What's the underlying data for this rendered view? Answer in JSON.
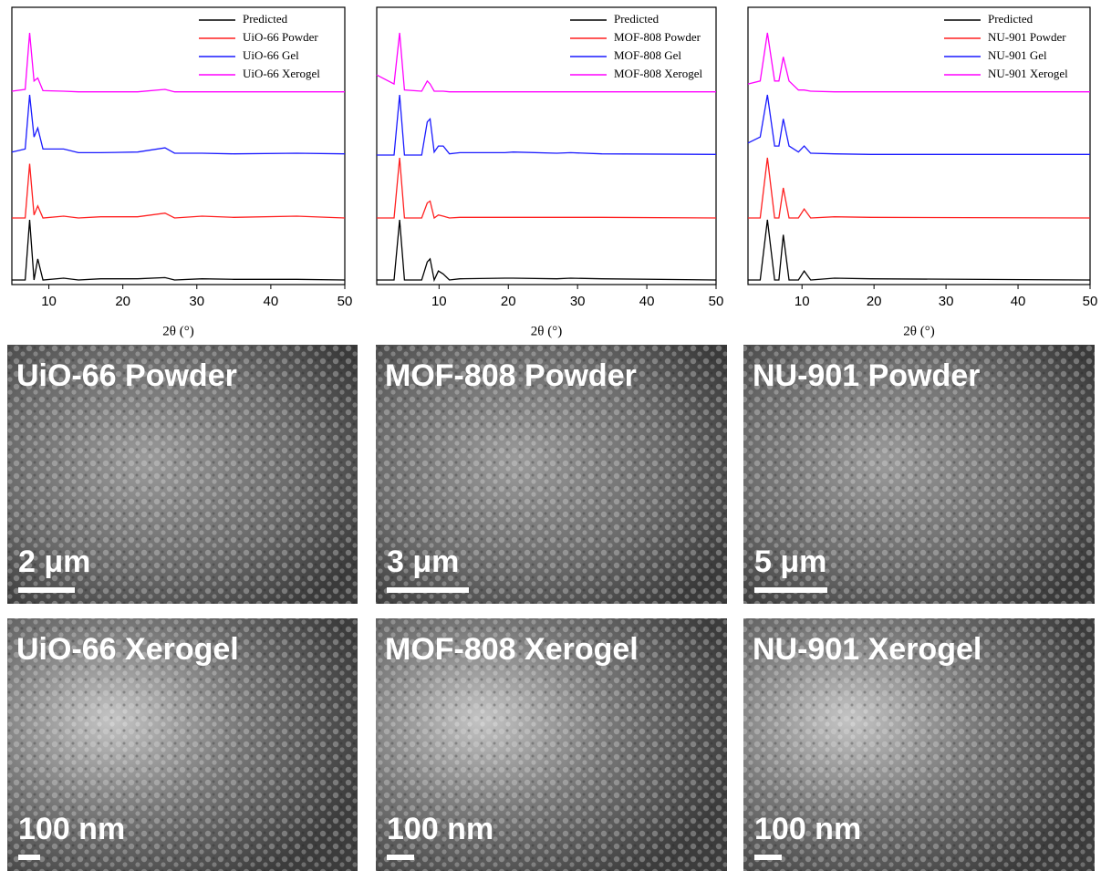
{
  "chart_data": [
    {
      "type": "line",
      "x_label": "2θ (°)",
      "xlim": [
        5,
        50
      ],
      "xticks": [
        10,
        20,
        30,
        40,
        50
      ],
      "ylim": [
        0,
        100
      ],
      "legend": "upper right",
      "x": [
        5,
        6.8,
        7.4,
        8.0,
        8.5,
        9.2,
        12.0,
        14,
        17,
        22,
        25.7,
        27,
        30.7,
        35,
        43.5,
        50
      ],
      "series": [
        {
          "name": "Predicted",
          "color": "#000000",
          "values": [
            0,
            0,
            100,
            0,
            35,
            0,
            3,
            0,
            2,
            2,
            4,
            0,
            2,
            1,
            1,
            0
          ]
        },
        {
          "name": "UiO-66 Powder",
          "color": "#ff2020",
          "values": [
            0,
            0,
            90,
            5,
            20,
            0,
            3,
            0,
            2,
            2,
            8,
            0,
            3,
            1,
            3,
            0
          ]
        },
        {
          "name": "UiO-66 Gel",
          "color": "#1a1aff",
          "values": [
            5,
            10,
            100,
            30,
            45,
            10,
            10,
            4,
            4,
            5,
            12,
            3,
            3,
            2,
            3,
            2
          ]
        },
        {
          "name": "UiO-66 Xerogel",
          "color": "#ff00ff",
          "values": [
            3,
            6,
            100,
            20,
            25,
            4,
            3,
            2,
            2,
            2,
            6,
            2,
            2,
            2,
            2,
            2
          ]
        }
      ]
    },
    {
      "type": "line",
      "x_label": "2θ (°)",
      "xlim": [
        1,
        50
      ],
      "xticks": [
        10,
        20,
        30,
        40,
        50
      ],
      "ylim": [
        0,
        100
      ],
      "legend": "upper right",
      "x": [
        1,
        3.5,
        4.3,
        5.0,
        7.5,
        8.3,
        8.7,
        9.3,
        9.9,
        10.6,
        11.5,
        13,
        19.5,
        20.7,
        27,
        29,
        33.5,
        50
      ],
      "series": [
        {
          "name": "Predicted",
          "color": "#000000",
          "values": [
            0,
            0,
            100,
            0,
            0,
            30,
            35,
            0,
            15,
            10,
            0,
            2,
            3,
            3,
            2,
            3,
            2,
            0
          ]
        },
        {
          "name": "MOF-808 Powder",
          "color": "#ff2020",
          "values": [
            0,
            0,
            100,
            0,
            0,
            25,
            28,
            0,
            5,
            3,
            0,
            1,
            1,
            1,
            1,
            1,
            1,
            0
          ]
        },
        {
          "name": "MOF-808 Gel",
          "color": "#1a1aff",
          "values": [
            0,
            0,
            100,
            0,
            0,
            55,
            60,
            5,
            15,
            15,
            2,
            4,
            4,
            5,
            3,
            4,
            2,
            1
          ]
        },
        {
          "name": "MOF-808 Xerogel",
          "color": "#ff00ff",
          "values": [
            30,
            15,
            100,
            5,
            3,
            20,
            15,
            3,
            3,
            3,
            2,
            2,
            2,
            2,
            2,
            2,
            2,
            2
          ]
        }
      ]
    },
    {
      "type": "line",
      "x_label": "2θ (°)",
      "xlim": [
        2.5,
        50
      ],
      "xticks": [
        10,
        20,
        30,
        40,
        50
      ],
      "ylim": [
        0,
        100
      ],
      "legend": "upper right",
      "x": [
        2.5,
        4.2,
        5.2,
        6.2,
        6.8,
        7.4,
        8.2,
        9.5,
        10.3,
        11.2,
        14.5,
        19.5,
        50
      ],
      "series": [
        {
          "name": "Predicted",
          "color": "#000000",
          "values": [
            0,
            0,
            100,
            0,
            0,
            75,
            0,
            0,
            15,
            0,
            3,
            2,
            0
          ]
        },
        {
          "name": "NU-901 Powder",
          "color": "#ff2020",
          "values": [
            0,
            0,
            100,
            0,
            0,
            50,
            0,
            0,
            15,
            0,
            2,
            1,
            0
          ]
        },
        {
          "name": "NU-901 Gel",
          "color": "#1a1aff",
          "values": [
            20,
            30,
            100,
            15,
            15,
            60,
            15,
            5,
            15,
            3,
            2,
            1,
            1
          ]
        },
        {
          "name": "NU-901 Xerogel",
          "color": "#ff00ff",
          "values": [
            15,
            20,
            100,
            20,
            20,
            60,
            20,
            5,
            5,
            3,
            2,
            2,
            2
          ]
        }
      ]
    }
  ],
  "panels": [
    {
      "label": "UiO-66 Powder",
      "scale": "2 μm"
    },
    {
      "label": "MOF-808 Powder",
      "scale": "3 μm"
    },
    {
      "label": "NU-901 Powder",
      "scale": "5 μm"
    },
    {
      "label": "UiO-66 Xerogel",
      "scale": "100 nm"
    },
    {
      "label": "MOF-808 Xerogel",
      "scale": "100 nm"
    },
    {
      "label": "NU-901 Xerogel",
      "scale": "100 nm"
    }
  ]
}
